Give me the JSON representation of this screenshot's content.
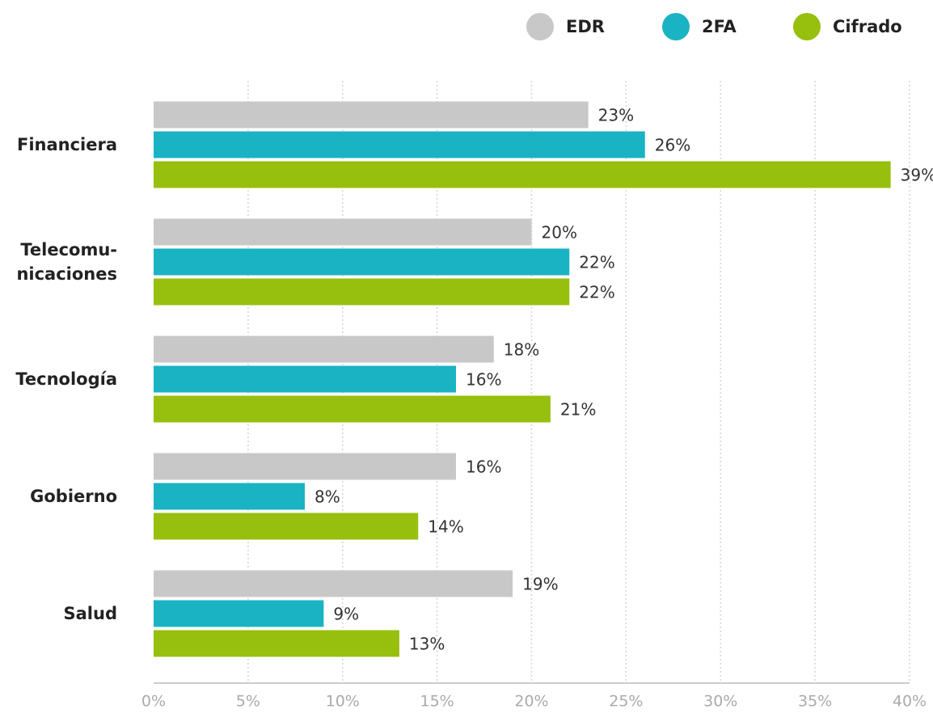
{
  "chart_data": {
    "type": "bar",
    "orientation": "horizontal",
    "categories": [
      "Financiera",
      "Telecomu-\nnicaciones",
      "Tecnología",
      "Gobierno",
      "Salud"
    ],
    "series": [
      {
        "name": "EDR",
        "color": "#c8c8c8",
        "values": [
          23,
          20,
          18,
          16,
          19
        ],
        "value_labels": [
          "23%",
          "20%",
          "18%",
          "16%",
          "19%"
        ]
      },
      {
        "name": "2FA",
        "color": "#1ab3c4",
        "values": [
          26,
          22,
          16,
          8,
          9
        ],
        "value_labels": [
          "26%",
          "22%",
          "16%",
          "8%",
          "9%"
        ]
      },
      {
        "name": "Cifrado",
        "color": "#97bf0d",
        "values": [
          39,
          22,
          21,
          14,
          13
        ],
        "value_labels": [
          "39%",
          "22%",
          "21%",
          "14%",
          "13%"
        ]
      }
    ],
    "xlim": [
      0,
      40
    ],
    "xticks": [
      {
        "value": 0,
        "label": "0%"
      },
      {
        "value": 5,
        "label": "5%"
      },
      {
        "value": 10,
        "label": "10%"
      },
      {
        "value": 15,
        "label": "15%"
      },
      {
        "value": 20,
        "label": "20%"
      },
      {
        "value": 25,
        "label": "25%"
      },
      {
        "value": 30,
        "label": "30%"
      },
      {
        "value": 35,
        "label": "35%"
      },
      {
        "value": 40,
        "label": "40%"
      }
    ],
    "grid": true,
    "legend": "top-right"
  }
}
